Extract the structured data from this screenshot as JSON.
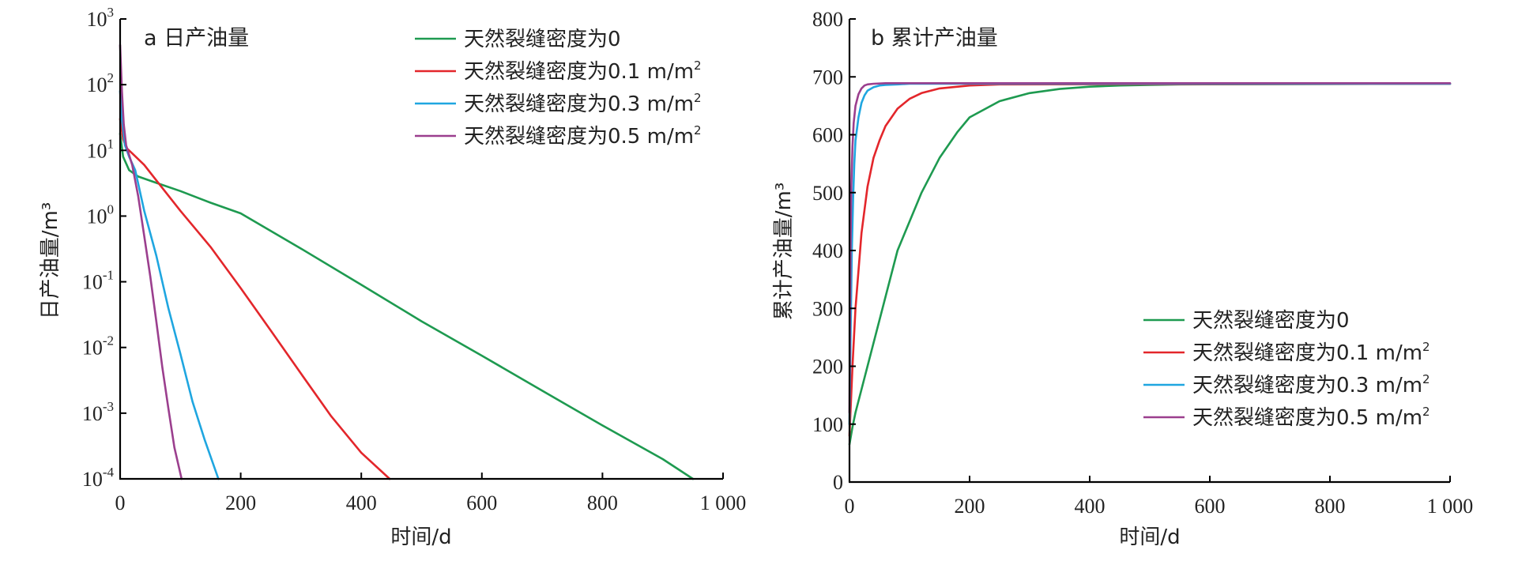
{
  "colors": {
    "green": "#1e9a50",
    "red": "#e3262b",
    "blue": "#1fa6e0",
    "purple": "#9b3f8e"
  },
  "chart_data": [
    {
      "type": "line",
      "title": "a 日产油量",
      "xlabel": "时间/d",
      "ylabel": "日产油量/m³",
      "xlim": [
        0,
        1000
      ],
      "x_ticks": [
        "0",
        "200",
        "400",
        "600",
        "800",
        "1 000"
      ],
      "yscale": "log",
      "ylim": [
        0.0001,
        1000
      ],
      "y_ticks": [
        {
          "base": "10",
          "exp": "3"
        },
        {
          "base": "10",
          "exp": "2"
        },
        {
          "base": "10",
          "exp": "1"
        },
        {
          "base": "10",
          "exp": "0"
        },
        {
          "base": "10",
          "exp": "-1"
        },
        {
          "base": "10",
          "exp": "-2"
        },
        {
          "base": "10",
          "exp": "-3"
        },
        {
          "base": "10",
          "exp": "-4"
        }
      ],
      "legend_position": "top-right",
      "series": [
        {
          "name": "天然裂缝密度为0",
          "color": "green",
          "x": [
            0,
            5,
            15,
            30,
            60,
            100,
            150,
            200,
            300,
            400,
            500,
            600,
            700,
            800,
            900,
            950
          ],
          "y": [
            18,
            8,
            5,
            4,
            3.2,
            2.4,
            1.6,
            1.1,
            0.32,
            0.09,
            0.025,
            0.0075,
            0.0022,
            0.00065,
            0.0002,
            0.0001
          ]
        },
        {
          "name": "天然裂缝密度为0.1 m/m²",
          "color": "red",
          "x": [
            0,
            5,
            10,
            20,
            40,
            60,
            100,
            150,
            200,
            250,
            300,
            350,
            400,
            447
          ],
          "y": [
            30,
            15,
            11,
            9,
            6,
            3.5,
            1.2,
            0.34,
            0.08,
            0.018,
            0.004,
            0.0009,
            0.00025,
            0.0001
          ]
        },
        {
          "name": "天然裂缝密度为0.3 m/m²",
          "color": "blue",
          "x": [
            0,
            3,
            8,
            15,
            25,
            40,
            60,
            80,
            100,
            120,
            140,
            163
          ],
          "y": [
            80,
            30,
            12,
            8,
            5,
            1.2,
            0.25,
            0.04,
            0.008,
            0.0015,
            0.0004,
            0.0001
          ]
        },
        {
          "name": "天然裂缝密度为0.5 m/m²",
          "color": "purple",
          "x": [
            0,
            3,
            6,
            10,
            20,
            30,
            40,
            50,
            60,
            70,
            80,
            90,
            102
          ],
          "y": [
            400,
            80,
            25,
            12,
            6,
            2,
            0.5,
            0.12,
            0.025,
            0.005,
            0.0012,
            0.0003,
            0.0001
          ]
        }
      ]
    },
    {
      "type": "line",
      "title": "b 累计产油量",
      "xlabel": "时间/d",
      "ylabel": "累计产油量/m³",
      "xlim": [
        0,
        1000
      ],
      "x_ticks": [
        "0",
        "200",
        "400",
        "600",
        "800",
        "1 000"
      ],
      "ylim": [
        0,
        800
      ],
      "y_ticks": [
        "0",
        "100",
        "200",
        "300",
        "400",
        "500",
        "600",
        "700",
        "800"
      ],
      "legend_position": "bottom-right",
      "series": [
        {
          "name": "天然裂缝密度为0",
          "color": "green",
          "x": [
            0,
            5,
            10,
            20,
            40,
            60,
            80,
            100,
            120,
            150,
            180,
            200,
            250,
            300,
            350,
            400,
            450,
            500,
            550,
            1000
          ],
          "y": [
            65,
            95,
            120,
            160,
            240,
            320,
            400,
            450,
            500,
            560,
            605,
            630,
            658,
            672,
            679,
            683,
            685,
            686,
            687,
            688
          ]
        },
        {
          "name": "天然裂缝密度为0.1 m/m²",
          "color": "red",
          "x": [
            0,
            5,
            10,
            20,
            30,
            40,
            50,
            60,
            80,
            100,
            120,
            150,
            200,
            250,
            1000
          ],
          "y": [
            80,
            200,
            300,
            430,
            510,
            560,
            590,
            615,
            645,
            662,
            672,
            680,
            685,
            687,
            688
          ]
        },
        {
          "name": "天然裂缝密度为0.3 m/m²",
          "color": "blue",
          "x": [
            0,
            2,
            4,
            6,
            8,
            10,
            15,
            20,
            25,
            30,
            40,
            50,
            60,
            80,
            100,
            1000
          ],
          "y": [
            100,
            260,
            400,
            490,
            550,
            590,
            630,
            655,
            668,
            676,
            682,
            685,
            686,
            687,
            688,
            688
          ]
        },
        {
          "name": "天然裂缝密度为0.5 m/m²",
          "color": "purple",
          "x": [
            0,
            1,
            2,
            3,
            5,
            7,
            10,
            15,
            20,
            25,
            30,
            40,
            60,
            1000
          ],
          "y": [
            120,
            300,
            420,
            510,
            580,
            620,
            650,
            670,
            680,
            685,
            687,
            688,
            689,
            689
          ]
        }
      ]
    }
  ]
}
